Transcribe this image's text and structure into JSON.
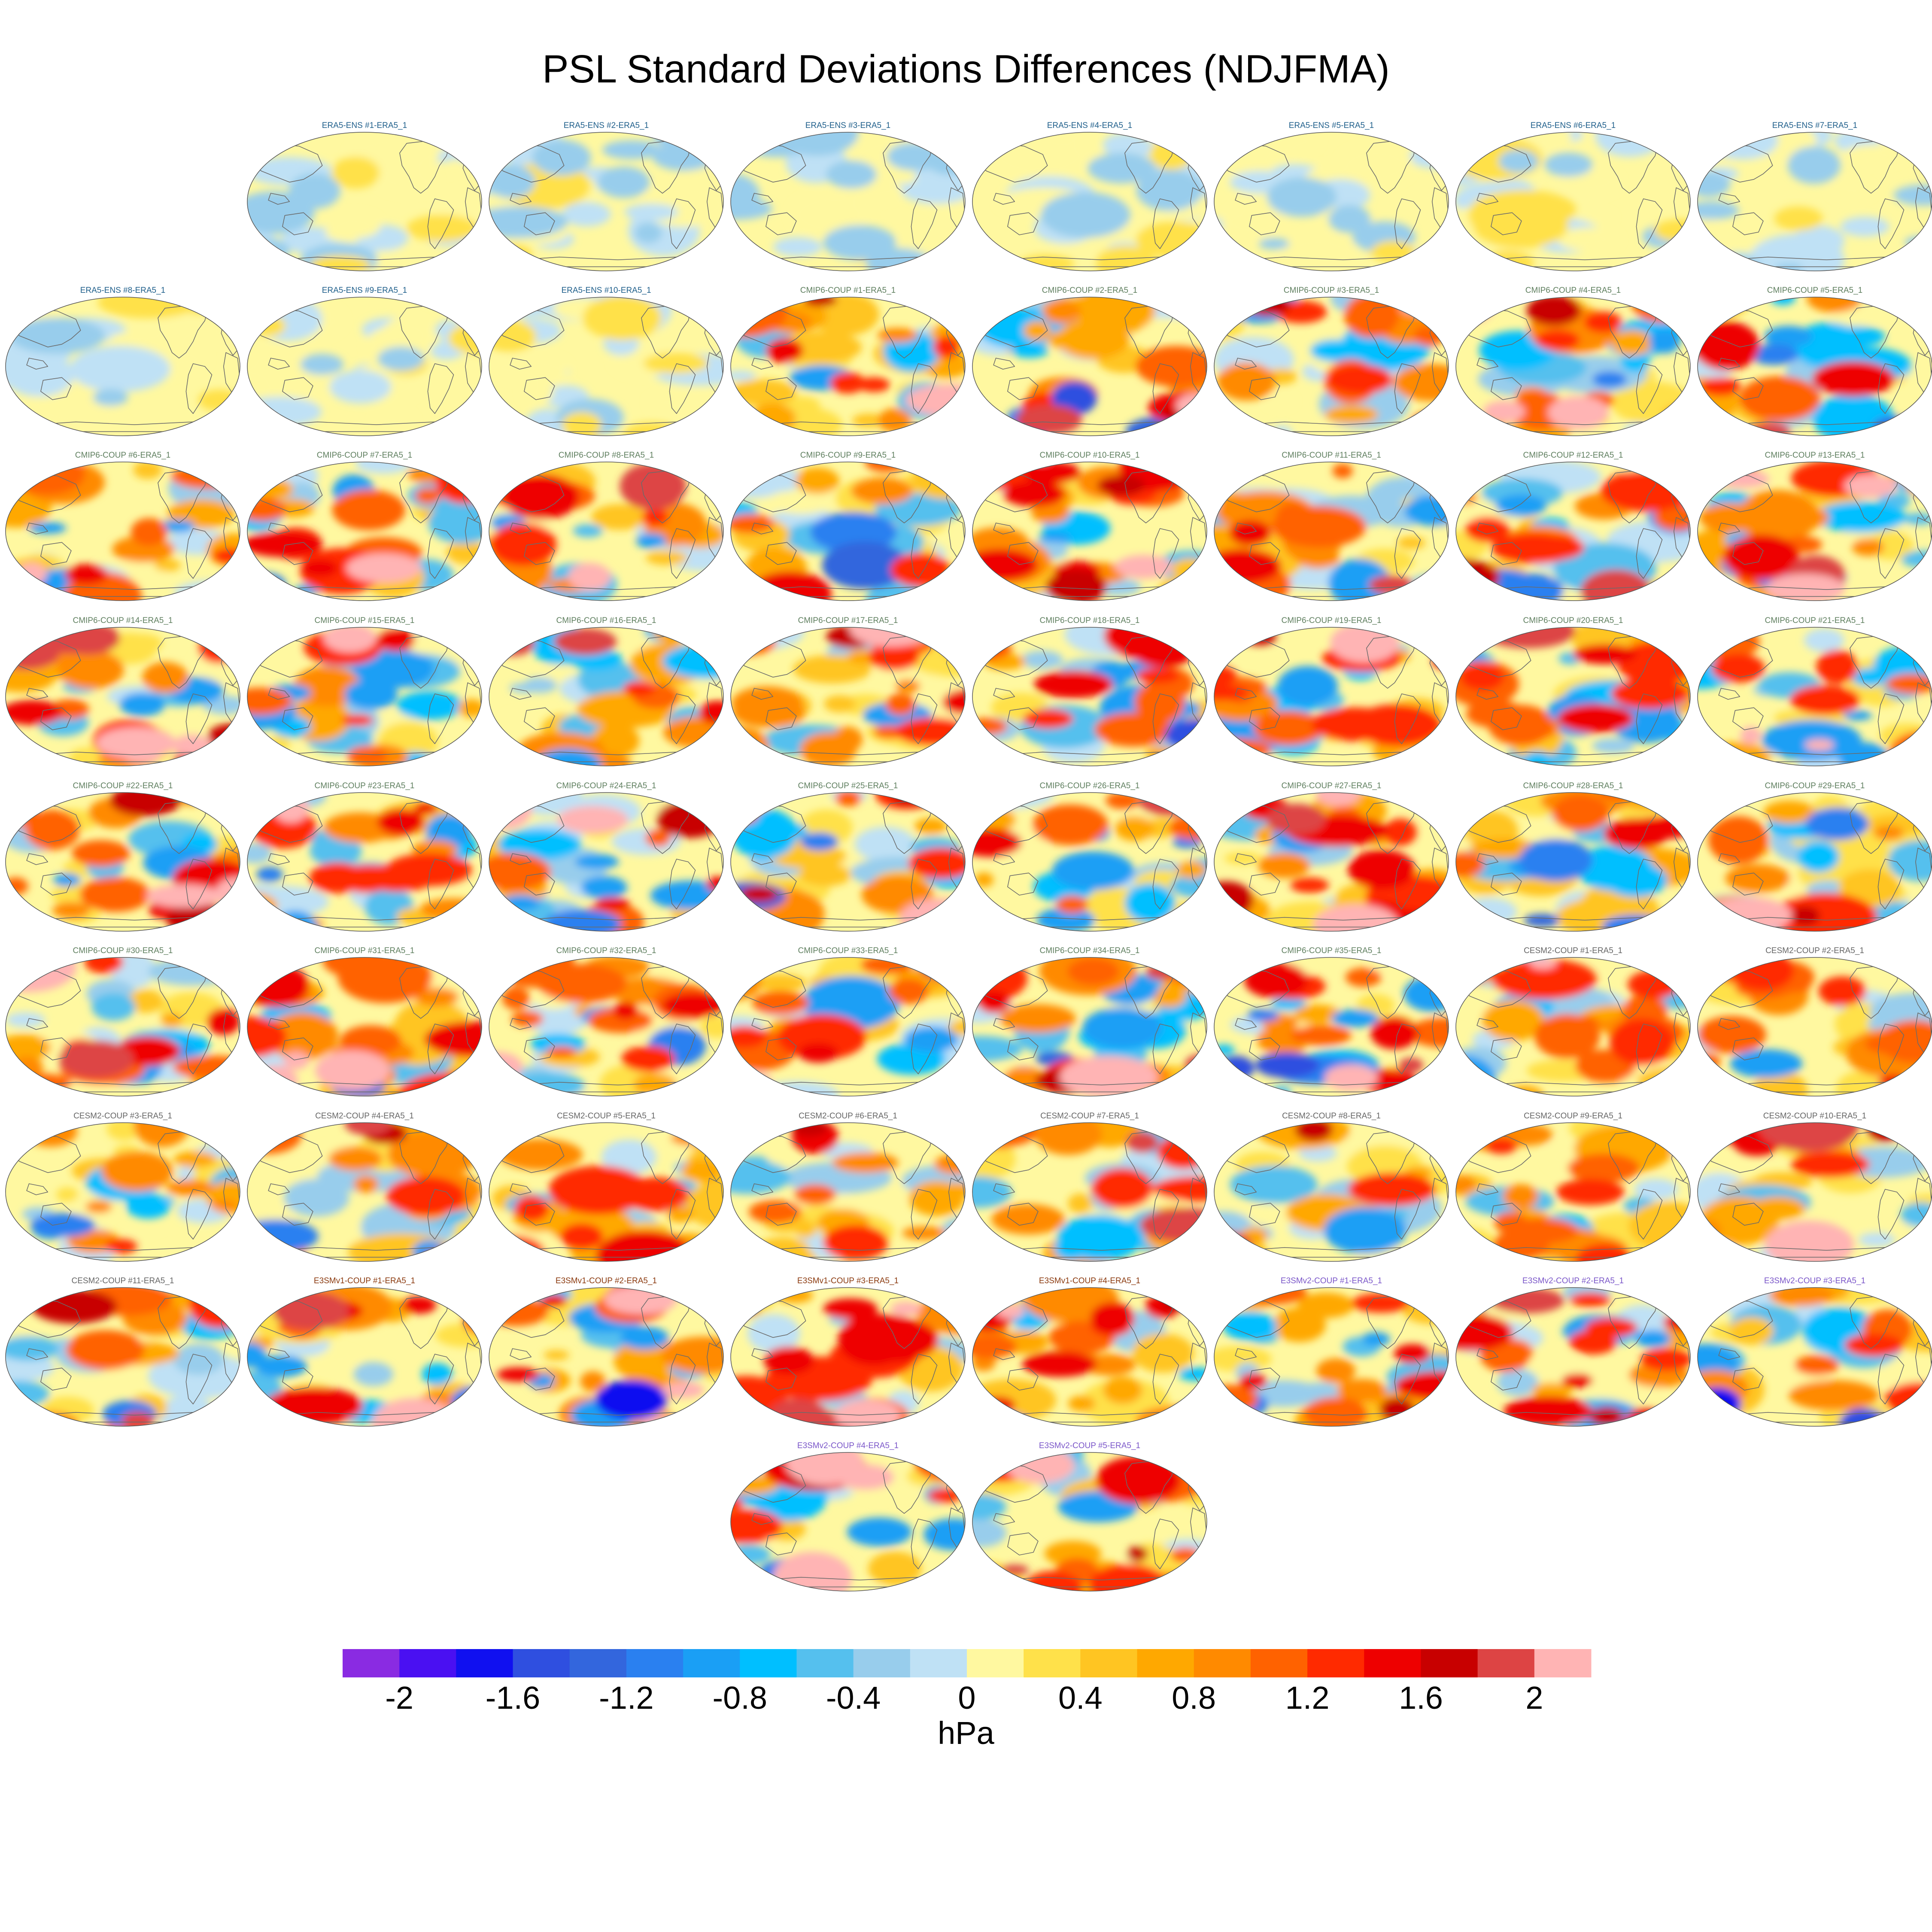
{
  "chart_data": {
    "type": "heatmap",
    "title": "PSL Standard Deviations Differences (NDJFMA)",
    "projection": "robinson, pacific-centered global maps",
    "panels": [
      {
        "title": "ERA5-ENS    #1-ERA5_1",
        "group": "ERA5-ENS"
      },
      {
        "title": "ERA5-ENS    #2-ERA5_1",
        "group": "ERA5-ENS"
      },
      {
        "title": "ERA5-ENS    #3-ERA5_1",
        "group": "ERA5-ENS"
      },
      {
        "title": "ERA5-ENS    #4-ERA5_1",
        "group": "ERA5-ENS"
      },
      {
        "title": "ERA5-ENS    #5-ERA5_1",
        "group": "ERA5-ENS"
      },
      {
        "title": "ERA5-ENS    #6-ERA5_1",
        "group": "ERA5-ENS"
      },
      {
        "title": "ERA5-ENS    #7-ERA5_1",
        "group": "ERA5-ENS"
      },
      {
        "title": "ERA5-ENS    #8-ERA5_1",
        "group": "ERA5-ENS"
      },
      {
        "title": "ERA5-ENS    #9-ERA5_1",
        "group": "ERA5-ENS"
      },
      {
        "title": "ERA5-ENS    #10-ERA5_1",
        "group": "ERA5-ENS"
      },
      {
        "title": "CMIP6-COUP  #1-ERA5_1",
        "group": "CMIP6-COUP"
      },
      {
        "title": "CMIP6-COUP  #2-ERA5_1",
        "group": "CMIP6-COUP"
      },
      {
        "title": "CMIP6-COUP  #3-ERA5_1",
        "group": "CMIP6-COUP"
      },
      {
        "title": "CMIP6-COUP  #4-ERA5_1",
        "group": "CMIP6-COUP"
      },
      {
        "title": "CMIP6-COUP  #5-ERA5_1",
        "group": "CMIP6-COUP"
      },
      {
        "title": "CMIP6-COUP  #6-ERA5_1",
        "group": "CMIP6-COUP"
      },
      {
        "title": "CMIP6-COUP  #7-ERA5_1",
        "group": "CMIP6-COUP"
      },
      {
        "title": "CMIP6-COUP  #8-ERA5_1",
        "group": "CMIP6-COUP"
      },
      {
        "title": "CMIP6-COUP  #9-ERA5_1",
        "group": "CMIP6-COUP"
      },
      {
        "title": "CMIP6-COUP  #10-ERA5_1",
        "group": "CMIP6-COUP"
      },
      {
        "title": "CMIP6-COUP  #11-ERA5_1",
        "group": "CMIP6-COUP"
      },
      {
        "title": "CMIP6-COUP  #12-ERA5_1",
        "group": "CMIP6-COUP"
      },
      {
        "title": "CMIP6-COUP  #13-ERA5_1",
        "group": "CMIP6-COUP"
      },
      {
        "title": "CMIP6-COUP  #14-ERA5_1",
        "group": "CMIP6-COUP"
      },
      {
        "title": "CMIP6-COUP  #15-ERA5_1",
        "group": "CMIP6-COUP"
      },
      {
        "title": "CMIP6-COUP  #16-ERA5_1",
        "group": "CMIP6-COUP"
      },
      {
        "title": "CMIP6-COUP  #17-ERA5_1",
        "group": "CMIP6-COUP"
      },
      {
        "title": "CMIP6-COUP  #18-ERA5_1",
        "group": "CMIP6-COUP"
      },
      {
        "title": "CMIP6-COUP  #19-ERA5_1",
        "group": "CMIP6-COUP"
      },
      {
        "title": "CMIP6-COUP  #20-ERA5_1",
        "group": "CMIP6-COUP"
      },
      {
        "title": "CMIP6-COUP  #21-ERA5_1",
        "group": "CMIP6-COUP"
      },
      {
        "title": "CMIP6-COUP  #22-ERA5_1",
        "group": "CMIP6-COUP"
      },
      {
        "title": "CMIP6-COUP  #23-ERA5_1",
        "group": "CMIP6-COUP"
      },
      {
        "title": "CMIP6-COUP  #24-ERA5_1",
        "group": "CMIP6-COUP"
      },
      {
        "title": "CMIP6-COUP  #25-ERA5_1",
        "group": "CMIP6-COUP"
      },
      {
        "title": "CMIP6-COUP  #26-ERA5_1",
        "group": "CMIP6-COUP"
      },
      {
        "title": "CMIP6-COUP  #27-ERA5_1",
        "group": "CMIP6-COUP"
      },
      {
        "title": "CMIP6-COUP  #28-ERA5_1",
        "group": "CMIP6-COUP"
      },
      {
        "title": "CMIP6-COUP  #29-ERA5_1",
        "group": "CMIP6-COUP"
      },
      {
        "title": "CMIP6-COUP  #30-ERA5_1",
        "group": "CMIP6-COUP"
      },
      {
        "title": "CMIP6-COUP  #31-ERA5_1",
        "group": "CMIP6-COUP"
      },
      {
        "title": "CMIP6-COUP  #32-ERA5_1",
        "group": "CMIP6-COUP"
      },
      {
        "title": "CMIP6-COUP  #33-ERA5_1",
        "group": "CMIP6-COUP"
      },
      {
        "title": "CMIP6-COUP  #34-ERA5_1",
        "group": "CMIP6-COUP"
      },
      {
        "title": "CMIP6-COUP  #35-ERA5_1",
        "group": "CMIP6-COUP"
      },
      {
        "title": "CESM2-COUP  #1-ERA5_1",
        "group": "CESM2-COUP"
      },
      {
        "title": "CESM2-COUP  #2-ERA5_1",
        "group": "CESM2-COUP"
      },
      {
        "title": "CESM2-COUP  #3-ERA5_1",
        "group": "CESM2-COUP"
      },
      {
        "title": "CESM2-COUP  #4-ERA5_1",
        "group": "CESM2-COUP"
      },
      {
        "title": "CESM2-COUP  #5-ERA5_1",
        "group": "CESM2-COUP"
      },
      {
        "title": "CESM2-COUP  #6-ERA5_1",
        "group": "CESM2-COUP"
      },
      {
        "title": "CESM2-COUP  #7-ERA5_1",
        "group": "CESM2-COUP"
      },
      {
        "title": "CESM2-COUP  #8-ERA5_1",
        "group": "CESM2-COUP"
      },
      {
        "title": "CESM2-COUP  #9-ERA5_1",
        "group": "CESM2-COUP"
      },
      {
        "title": "CESM2-COUP  #10-ERA5_1",
        "group": "CESM2-COUP"
      },
      {
        "title": "CESM2-COUP  #11-ERA5_1",
        "group": "CESM2-COUP"
      },
      {
        "title": "E3SMv1-COUP #1-ERA5_1",
        "group": "E3SMv1-COUP"
      },
      {
        "title": "E3SMv1-COUP #2-ERA5_1",
        "group": "E3SMv1-COUP"
      },
      {
        "title": "E3SMv1-COUP #3-ERA5_1",
        "group": "E3SMv1-COUP"
      },
      {
        "title": "E3SMv1-COUP #4-ERA5_1",
        "group": "E3SMv1-COUP"
      },
      {
        "title": "E3SMv2-COUP #1-ERA5_1",
        "group": "E3SMv2-COUP"
      },
      {
        "title": "E3SMv2-COUP #2-ERA5_1",
        "group": "E3SMv2-COUP"
      },
      {
        "title": "E3SMv2-COUP #3-ERA5_1",
        "group": "E3SMv2-COUP"
      },
      {
        "title": "E3SMv2-COUP #4-ERA5_1",
        "group": "E3SMv2-COUP"
      },
      {
        "title": "E3SMv2-COUP #5-ERA5_1",
        "group": "E3SMv2-COUP"
      }
    ],
    "group_title_colors": {
      "ERA5-ENS": "#1f5f8b",
      "CMIP6-COUP": "#5f7f5f",
      "CESM2-COUP": "#666666",
      "E3SMv1-COUP": "#8b3a0f",
      "E3SMv2-COUP": "#7b57c9"
    },
    "colorbar": {
      "unit": "hPa",
      "range": [
        -2.2,
        2.2
      ],
      "interval": 0.2,
      "tick_labels": [
        "-2",
        "-1.6",
        "-1.2",
        "-0.8",
        "-0.4",
        "0",
        "0.4",
        "0.8",
        "1.2",
        "1.6",
        "2"
      ],
      "tick_values": [
        -2,
        -1.6,
        -1.2,
        -0.8,
        -0.4,
        0,
        0.4,
        0.8,
        1.2,
        1.6,
        2
      ],
      "colors": [
        "#8a2be2",
        "#4a10f2",
        "#1010f0",
        "#2f4fe0",
        "#3366dd",
        "#2a80f0",
        "#1a9ff5",
        "#00bfff",
        "#55c0ee",
        "#98cdec",
        "#bfe1f5",
        "#fff8a0",
        "#ffe14a",
        "#ffc522",
        "#ffa800",
        "#ff8a00",
        "#ff6200",
        "#ff2a00",
        "#ee0000",
        "#c80000",
        "#dd4444",
        "#ffb4b4"
      ]
    }
  }
}
